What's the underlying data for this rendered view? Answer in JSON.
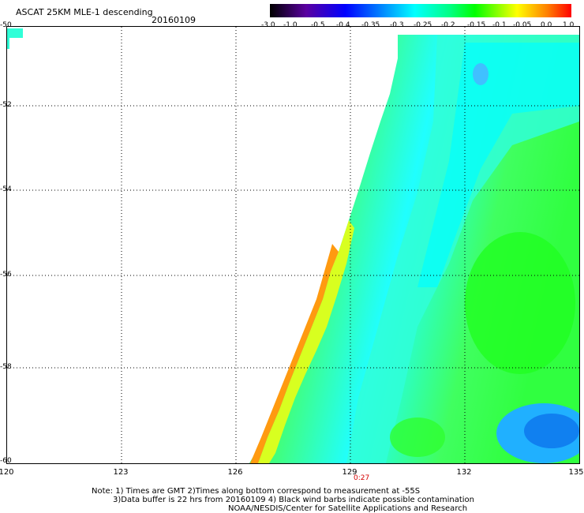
{
  "header": {
    "title": "ASCAT 25KM MLE-1 descending",
    "date": "20160109"
  },
  "colorbar": {
    "labels": [
      "-3.0",
      "-1.0",
      "-0.5",
      "-0.4",
      "-0.35",
      "-0.3",
      "-0.25",
      "-0.2",
      "-0.15",
      "-0.1",
      "-0.05",
      "0.0",
      "1.0"
    ],
    "colors": [
      "#000000",
      "#5a00a0",
      "#0000ff",
      "#0090ff",
      "#00ffff",
      "#00ff00",
      "#ffff00",
      "#ff8000",
      "#ff0000"
    ]
  },
  "map": {
    "lat_labels": [
      "-50",
      "-52",
      "-54",
      "-56",
      "-58",
      "-60"
    ],
    "lon_labels": [
      "120",
      "123",
      "126",
      "129",
      "132",
      "135"
    ],
    "time_label": "0:27",
    "lat_range": [
      -50,
      -60
    ],
    "lon_range": [
      120,
      135
    ]
  },
  "notes": {
    "line1": "Note: 1) Times are GMT 2)Times along bottom correspond to measurement at -55S",
    "line2": "3)Data buffer is 22 hrs from 20160109 4) Black wind barbs indicate possible contamination",
    "line3": "NOAA/NESDIS/Center for Satellite Applications and Research"
  }
}
